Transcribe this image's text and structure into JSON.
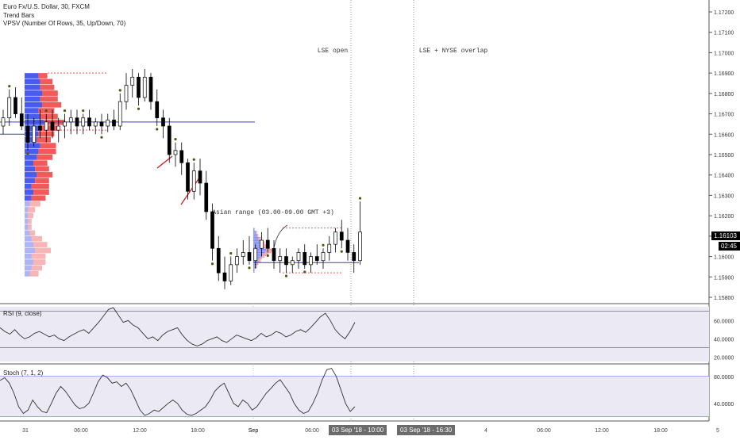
{
  "legend": {
    "symbol": "Euro Fx/U.S. Dollar, 30, FXCM",
    "indicator1": "Trend Bars",
    "indicator2": "VPSV (Number Of Rows, 35, Up/Down, 70)"
  },
  "annotations": {
    "lse_open": "LSE open",
    "overlap": "LSE + NYSE overlap",
    "asian_range": "Asian range (03.00-09.00 GMT +3)"
  },
  "price_tags": {
    "last_price": "1.16103",
    "countdown": "02:45"
  },
  "rsi_label": "RSI (9, close)",
  "stoch_label": "Stoch (7, 1, 2)",
  "time_tags": {
    "first": "03 Sep '18 - 10:00",
    "second": "03 Sep '18 - 16:30"
  },
  "colors": {
    "up_bar": "#ffffff",
    "down_bar": "#000000",
    "vp_up": "#4a5cf0",
    "vp_down": "#f25a5a",
    "poc_line": "#3f3fbf",
    "dots": "#4a5a10",
    "trend": "#d01010",
    "pane_bg": "#eae9f4"
  },
  "chart_data": [
    {
      "type": "candlestick",
      "title": "Euro Fx/U.S. Dollar, 30, FXCM",
      "y_ticks": [
        "1.17200",
        "1.17100",
        "1.17000",
        "1.16900",
        "1.16800",
        "1.16700",
        "1.16600",
        "1.16500",
        "1.16400",
        "1.16300",
        "1.16200",
        "1.16100",
        "1.16000",
        "1.15900",
        "1.15800"
      ],
      "ylim": [
        1.1575,
        1.1725
      ],
      "x_ticks": [
        "31",
        "06:00",
        "12:00",
        "18:00",
        "Sep",
        "06:00",
        "12:00",
        "4",
        "06:00",
        "12:00",
        "18:00",
        "5"
      ],
      "ohlc": [
        [
          1.1664,
          1.1672,
          1.166,
          1.1668
        ],
        [
          1.1668,
          1.1682,
          1.1664,
          1.1678
        ],
        [
          1.1678,
          1.1683,
          1.1668,
          1.167
        ],
        [
          1.167,
          1.1678,
          1.1662,
          1.1664
        ],
        [
          1.1664,
          1.167,
          1.1652,
          1.1656
        ],
        [
          1.1656,
          1.1668,
          1.1654,
          1.1664
        ],
        [
          1.1664,
          1.1672,
          1.1658,
          1.1662
        ],
        [
          1.1662,
          1.167,
          1.1656,
          1.1666
        ],
        [
          1.1666,
          1.1672,
          1.1658,
          1.1662
        ],
        [
          1.1662,
          1.1668,
          1.1656,
          1.1664
        ],
        [
          1.1664,
          1.167,
          1.1658,
          1.1666
        ],
        [
          1.1666,
          1.1672,
          1.166,
          1.1668
        ],
        [
          1.1668,
          1.1672,
          1.166,
          1.1664
        ],
        [
          1.1664,
          1.167,
          1.166,
          1.1668
        ],
        [
          1.1668,
          1.1672,
          1.1662,
          1.1664
        ],
        [
          1.1664,
          1.1668,
          1.166,
          1.1666
        ],
        [
          1.1666,
          1.167,
          1.166,
          1.1664
        ],
        [
          1.1664,
          1.167,
          1.1661,
          1.1667
        ],
        [
          1.1667,
          1.1672,
          1.1662,
          1.1664
        ],
        [
          1.1664,
          1.168,
          1.1662,
          1.1676
        ],
        [
          1.1676,
          1.169,
          1.1672,
          1.1684
        ],
        [
          1.1684,
          1.1692,
          1.1678,
          1.1688
        ],
        [
          1.1688,
          1.169,
          1.1674,
          1.1678
        ],
        [
          1.1678,
          1.1692,
          1.1676,
          1.1688
        ],
        [
          1.1688,
          1.169,
          1.1672,
          1.1676
        ],
        [
          1.1676,
          1.1682,
          1.1664,
          1.1668
        ],
        [
          1.1668,
          1.1672,
          1.1658,
          1.1664
        ],
        [
          1.1664,
          1.1668,
          1.1646,
          1.165
        ],
        [
          1.165,
          1.1656,
          1.1644,
          1.1652
        ],
        [
          1.1652,
          1.1656,
          1.164,
          1.1646
        ],
        [
          1.1646,
          1.1648,
          1.1628,
          1.1632
        ],
        [
          1.1632,
          1.1646,
          1.1628,
          1.1642
        ],
        [
          1.1642,
          1.1648,
          1.163,
          1.1636
        ],
        [
          1.1636,
          1.1642,
          1.1618,
          1.1622
        ],
        [
          1.1622,
          1.1626,
          1.1598,
          1.1604
        ],
        [
          1.1604,
          1.161,
          1.1588,
          1.1592
        ],
        [
          1.1592,
          1.16,
          1.1584,
          1.1588
        ],
        [
          1.1588,
          1.16,
          1.1586,
          1.1596
        ],
        [
          1.1596,
          1.1604,
          1.1592,
          1.16
        ],
        [
          1.16,
          1.1608,
          1.1596,
          1.1602
        ],
        [
          1.1602,
          1.161,
          1.1596,
          1.1598
        ],
        [
          1.1598,
          1.1606,
          1.1594,
          1.1604
        ],
        [
          1.1604,
          1.1612,
          1.16,
          1.1608
        ],
        [
          1.1608,
          1.1614,
          1.1602,
          1.1604
        ],
        [
          1.1604,
          1.1608,
          1.1594,
          1.1598
        ],
        [
          1.1598,
          1.1604,
          1.1592,
          1.16
        ],
        [
          1.16,
          1.1604,
          1.1592,
          1.1596
        ],
        [
          1.1596,
          1.16,
          1.1592,
          1.1598
        ],
        [
          1.1598,
          1.1604,
          1.1594,
          1.1602
        ],
        [
          1.1602,
          1.1606,
          1.1594,
          1.1596
        ],
        [
          1.1596,
          1.1602,
          1.1592,
          1.16
        ],
        [
          1.16,
          1.1606,
          1.1596,
          1.1598
        ],
        [
          1.1598,
          1.1604,
          1.1594,
          1.1602
        ],
        [
          1.1602,
          1.161,
          1.1598,
          1.1606
        ],
        [
          1.1606,
          1.1614,
          1.1602,
          1.1612
        ],
        [
          1.1612,
          1.1618,
          1.1604,
          1.1608
        ],
        [
          1.1608,
          1.1614,
          1.1598,
          1.1602
        ],
        [
          1.1602,
          1.1606,
          1.1592,
          1.1598
        ],
        [
          1.1598,
          1.1627,
          1.1596,
          1.1612
        ]
      ],
      "volume_profile_left": {
        "rows": 35,
        "price_top": 1.169,
        "price_bottom": 1.159,
        "up": [
          8,
          9,
          9,
          10,
          9,
          10,
          8,
          9,
          11,
          9,
          8,
          7,
          9,
          8,
          7,
          5,
          6,
          7,
          6,
          4,
          5,
          4,
          3,
          2,
          2,
          2,
          2,
          3,
          4,
          5,
          6,
          4,
          5,
          4,
          3
        ],
        "down": [
          5,
          7,
          8,
          9,
          10,
          11,
          9,
          10,
          12,
          10,
          9,
          8,
          9,
          10,
          9,
          8,
          8,
          9,
          8,
          10,
          9,
          8,
          6,
          4,
          3,
          2,
          2,
          3,
          6,
          8,
          9,
          8,
          7,
          6,
          5
        ]
      },
      "volume_profile_right": {
        "rows": 30,
        "price_top": 1.1614,
        "price_bottom": 1.1592,
        "up": [
          1,
          1,
          2,
          2,
          3,
          3,
          4,
          4,
          5,
          6,
          6,
          7,
          8,
          9,
          10,
          11,
          9,
          8,
          7,
          6,
          5,
          4,
          4,
          3,
          3,
          2,
          2,
          1,
          1,
          1
        ],
        "down": [
          0,
          0,
          1,
          1,
          1,
          1,
          2,
          2,
          2,
          3,
          3,
          3,
          4,
          4,
          5,
          6,
          5,
          4,
          3,
          3,
          2,
          2,
          2,
          1,
          1,
          1,
          1,
          0,
          0,
          0
        ]
      },
      "poc_levels": [
        1.1666,
        1.1597
      ],
      "range_levels": [
        1.169,
        1.1662,
        1.1614,
        1.1592
      ]
    },
    {
      "type": "line",
      "title": "RSI (9, close)",
      "y_ticks": [
        "60.0000",
        "40.0000",
        "20.0000"
      ],
      "ylim": [
        15,
        75
      ],
      "values": [
        52,
        48,
        45,
        50,
        44,
        40,
        42,
        46,
        48,
        45,
        42,
        44,
        40,
        38,
        42,
        45,
        48,
        50,
        46,
        52,
        58,
        65,
        72,
        74,
        66,
        58,
        60,
        55,
        52,
        46,
        40,
        42,
        38,
        44,
        48,
        50,
        52,
        44,
        38,
        34,
        32,
        34,
        38,
        40,
        42,
        38,
        36,
        40,
        44,
        42,
        40,
        38,
        41,
        46,
        42,
        44,
        48,
        46,
        42,
        44,
        48,
        50,
        47,
        52,
        58,
        64,
        68,
        60,
        50,
        44,
        40,
        48,
        58
      ]
    },
    {
      "type": "line",
      "title": "Stoch (7, 1, 2)",
      "y_ticks": [
        "80.0000",
        "40.0000"
      ],
      "ylim": [
        15,
        95
      ],
      "values": [
        74,
        78,
        70,
        55,
        35,
        25,
        30,
        45,
        35,
        28,
        26,
        40,
        55,
        65,
        58,
        48,
        38,
        32,
        34,
        40,
        55,
        72,
        82,
        78,
        70,
        72,
        65,
        70,
        60,
        45,
        30,
        22,
        25,
        30,
        28,
        34,
        40,
        45,
        40,
        30,
        24,
        22,
        25,
        30,
        35,
        45,
        58,
        65,
        70,
        55,
        40,
        35,
        45,
        40,
        30,
        35,
        45,
        55,
        62,
        70,
        75,
        65,
        55,
        40,
        30,
        25,
        28,
        40,
        55,
        75,
        90,
        92,
        80,
        60,
        40,
        28,
        35
      ]
    }
  ]
}
